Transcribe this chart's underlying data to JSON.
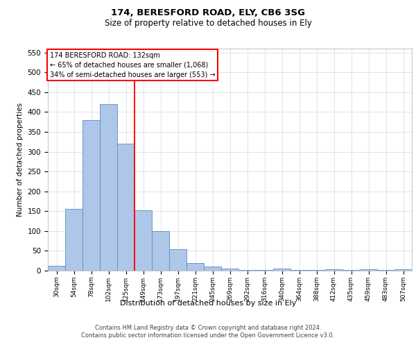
{
  "title_line1": "174, BERESFORD ROAD, ELY, CB6 3SG",
  "title_line2": "Size of property relative to detached houses in Ely",
  "xlabel": "Distribution of detached houses by size in Ely",
  "ylabel": "Number of detached properties",
  "footer_line1": "Contains HM Land Registry data © Crown copyright and database right 2024.",
  "footer_line2": "Contains public sector information licensed under the Open Government Licence v3.0.",
  "categories": [
    "30sqm",
    "54sqm",
    "78sqm",
    "102sqm",
    "125sqm",
    "149sqm",
    "173sqm",
    "197sqm",
    "221sqm",
    "245sqm",
    "269sqm",
    "292sqm",
    "316sqm",
    "340sqm",
    "364sqm",
    "388sqm",
    "412sqm",
    "435sqm",
    "459sqm",
    "483sqm",
    "507sqm"
  ],
  "values": [
    13,
    155,
    380,
    420,
    320,
    153,
    100,
    55,
    20,
    11,
    5,
    2,
    2,
    5,
    2,
    1,
    3,
    1,
    3,
    1,
    3
  ],
  "bar_color": "#aec6e8",
  "bar_edge_color": "#5a8fc0",
  "property_line_x": 4.5,
  "annotation_title": "174 BERESFORD ROAD: 132sqm",
  "annotation_line2": "← 65% of detached houses are smaller (1,068)",
  "annotation_line3": "34% of semi-detached houses are larger (553) →",
  "ylim": [
    0,
    560
  ],
  "yticks": [
    0,
    50,
    100,
    150,
    200,
    250,
    300,
    350,
    400,
    450,
    500,
    550
  ],
  "background_color": "#ffffff",
  "grid_color": "#d0d8e8"
}
